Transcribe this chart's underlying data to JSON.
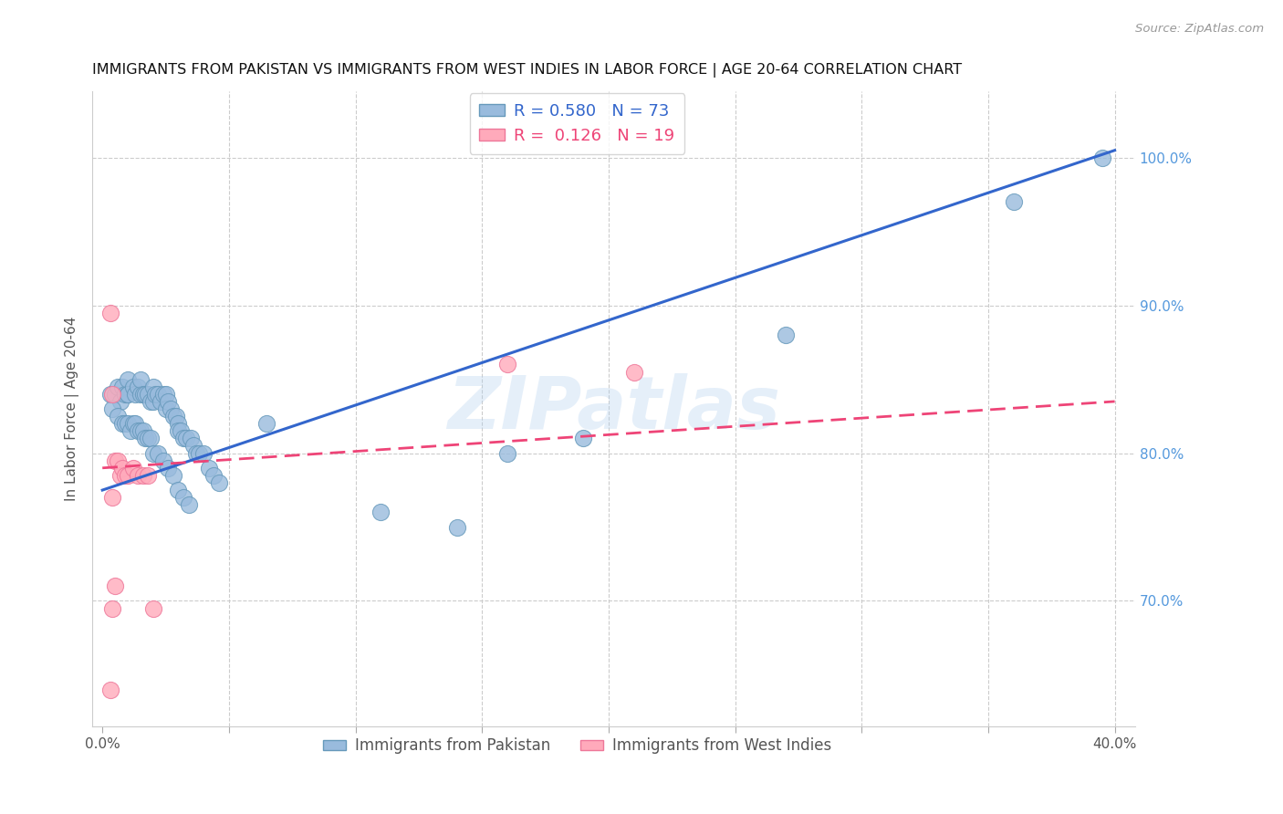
{
  "title": "IMMIGRANTS FROM PAKISTAN VS IMMIGRANTS FROM WEST INDIES IN LABOR FORCE | AGE 20-64 CORRELATION CHART",
  "source": "Source: ZipAtlas.com",
  "ylabel": "In Labor Force | Age 20-64",
  "right_yticks": [
    0.7,
    0.8,
    0.9,
    1.0
  ],
  "right_yticklabels": [
    "70.0%",
    "80.0%",
    "90.0%",
    "100.0%"
  ],
  "xlim": [
    -0.004,
    0.408
  ],
  "ylim": [
    0.615,
    1.045
  ],
  "xticks": [
    0.0,
    0.05,
    0.1,
    0.15,
    0.2,
    0.25,
    0.3,
    0.35,
    0.4
  ],
  "pakistan_color": "#99BBDD",
  "pakistan_edge": "#6699BB",
  "westindies_color": "#FFAABB",
  "westindies_edge": "#EE7799",
  "pakistan_R": 0.58,
  "pakistan_N": 73,
  "westindies_R": 0.126,
  "westindies_N": 19,
  "trend_blue": "#3366CC",
  "trend_pink": "#EE4477",
  "watermark": "ZIPatlas",
  "pakistan_x": [
    0.003,
    0.005,
    0.006,
    0.007,
    0.008,
    0.009,
    0.01,
    0.01,
    0.01,
    0.012,
    0.013,
    0.014,
    0.015,
    0.015,
    0.016,
    0.017,
    0.018,
    0.019,
    0.02,
    0.02,
    0.021,
    0.022,
    0.023,
    0.024,
    0.025,
    0.025,
    0.026,
    0.027,
    0.028,
    0.029,
    0.03,
    0.03,
    0.031,
    0.032,
    0.033,
    0.035,
    0.036,
    0.037,
    0.038,
    0.04,
    0.042,
    0.044,
    0.046,
    0.004,
    0.006,
    0.008,
    0.009,
    0.01,
    0.011,
    0.012,
    0.013,
    0.014,
    0.015,
    0.016,
    0.017,
    0.018,
    0.019,
    0.02,
    0.022,
    0.024,
    0.026,
    0.028,
    0.03,
    0.032,
    0.034,
    0.065,
    0.11,
    0.14,
    0.16,
    0.19,
    0.27,
    0.36,
    0.395
  ],
  "pakistan_y": [
    0.84,
    0.84,
    0.845,
    0.835,
    0.845,
    0.84,
    0.85,
    0.84,
    0.84,
    0.845,
    0.84,
    0.845,
    0.84,
    0.85,
    0.84,
    0.84,
    0.84,
    0.835,
    0.835,
    0.845,
    0.84,
    0.84,
    0.835,
    0.84,
    0.84,
    0.83,
    0.835,
    0.83,
    0.825,
    0.825,
    0.82,
    0.815,
    0.815,
    0.81,
    0.81,
    0.81,
    0.805,
    0.8,
    0.8,
    0.8,
    0.79,
    0.785,
    0.78,
    0.83,
    0.825,
    0.82,
    0.82,
    0.82,
    0.815,
    0.82,
    0.82,
    0.815,
    0.815,
    0.815,
    0.81,
    0.81,
    0.81,
    0.8,
    0.8,
    0.795,
    0.79,
    0.785,
    0.775,
    0.77,
    0.765,
    0.82,
    0.76,
    0.75,
    0.8,
    0.81,
    0.88,
    0.97,
    1.0
  ],
  "westindies_x": [
    0.003,
    0.004,
    0.005,
    0.006,
    0.007,
    0.008,
    0.009,
    0.01,
    0.012,
    0.014,
    0.016,
    0.018,
    0.02,
    0.003,
    0.004,
    0.16,
    0.21,
    0.004,
    0.005
  ],
  "westindies_y": [
    0.895,
    0.84,
    0.795,
    0.795,
    0.785,
    0.79,
    0.785,
    0.785,
    0.79,
    0.785,
    0.785,
    0.785,
    0.695,
    0.64,
    0.77,
    0.86,
    0.855,
    0.695,
    0.71
  ],
  "blue_line_x0": 0.0,
  "blue_line_y0": 0.775,
  "blue_line_x1": 0.4,
  "blue_line_y1": 1.005,
  "pink_line_x0": 0.0,
  "pink_line_y0": 0.79,
  "pink_line_x1": 0.4,
  "pink_line_y1": 0.835
}
